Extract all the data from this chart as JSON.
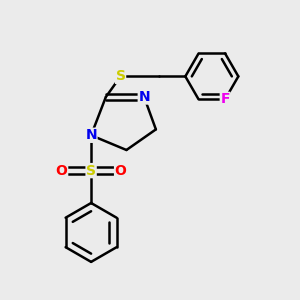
{
  "background_color": "#ebebeb",
  "bond_color": "#000000",
  "bond_width": 1.8,
  "atom_colors": {
    "N": "#0000ee",
    "S_sulfonyl": "#cccc00",
    "S_thio": "#cccc00",
    "O": "#ff0000",
    "F": "#ee00ee",
    "C": "#000000"
  },
  "font_size_atoms": 10,
  "figsize": [
    3.0,
    3.0
  ],
  "dpi": 100
}
